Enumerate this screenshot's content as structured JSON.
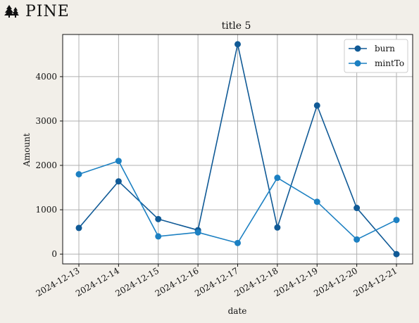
{
  "brand": {
    "name": "PINE",
    "icon": "pine-tree-icon"
  },
  "chart_data": {
    "type": "line",
    "title": "title 5",
    "xlabel": "date",
    "ylabel": "Amount",
    "categories": [
      "2024-12-13",
      "2024-12-14",
      "2024-12-15",
      "2024-12-16",
      "2024-12-17",
      "2024-12-18",
      "2024-12-19",
      "2024-12-20",
      "2024-12-21"
    ],
    "yticks": [
      0,
      1000,
      2000,
      3000,
      4000
    ],
    "ylim": [
      -220,
      4950
    ],
    "grid": true,
    "legend_position": "top-right",
    "series": [
      {
        "name": "burn",
        "color": "#105a96",
        "values": [
          590,
          1640,
          790,
          540,
          4730,
          600,
          3350,
          1040,
          0
        ]
      },
      {
        "name": "mintTo",
        "color": "#1c80c2",
        "values": [
          1800,
          2100,
          400,
          490,
          250,
          1720,
          1180,
          330,
          770
        ]
      }
    ]
  }
}
